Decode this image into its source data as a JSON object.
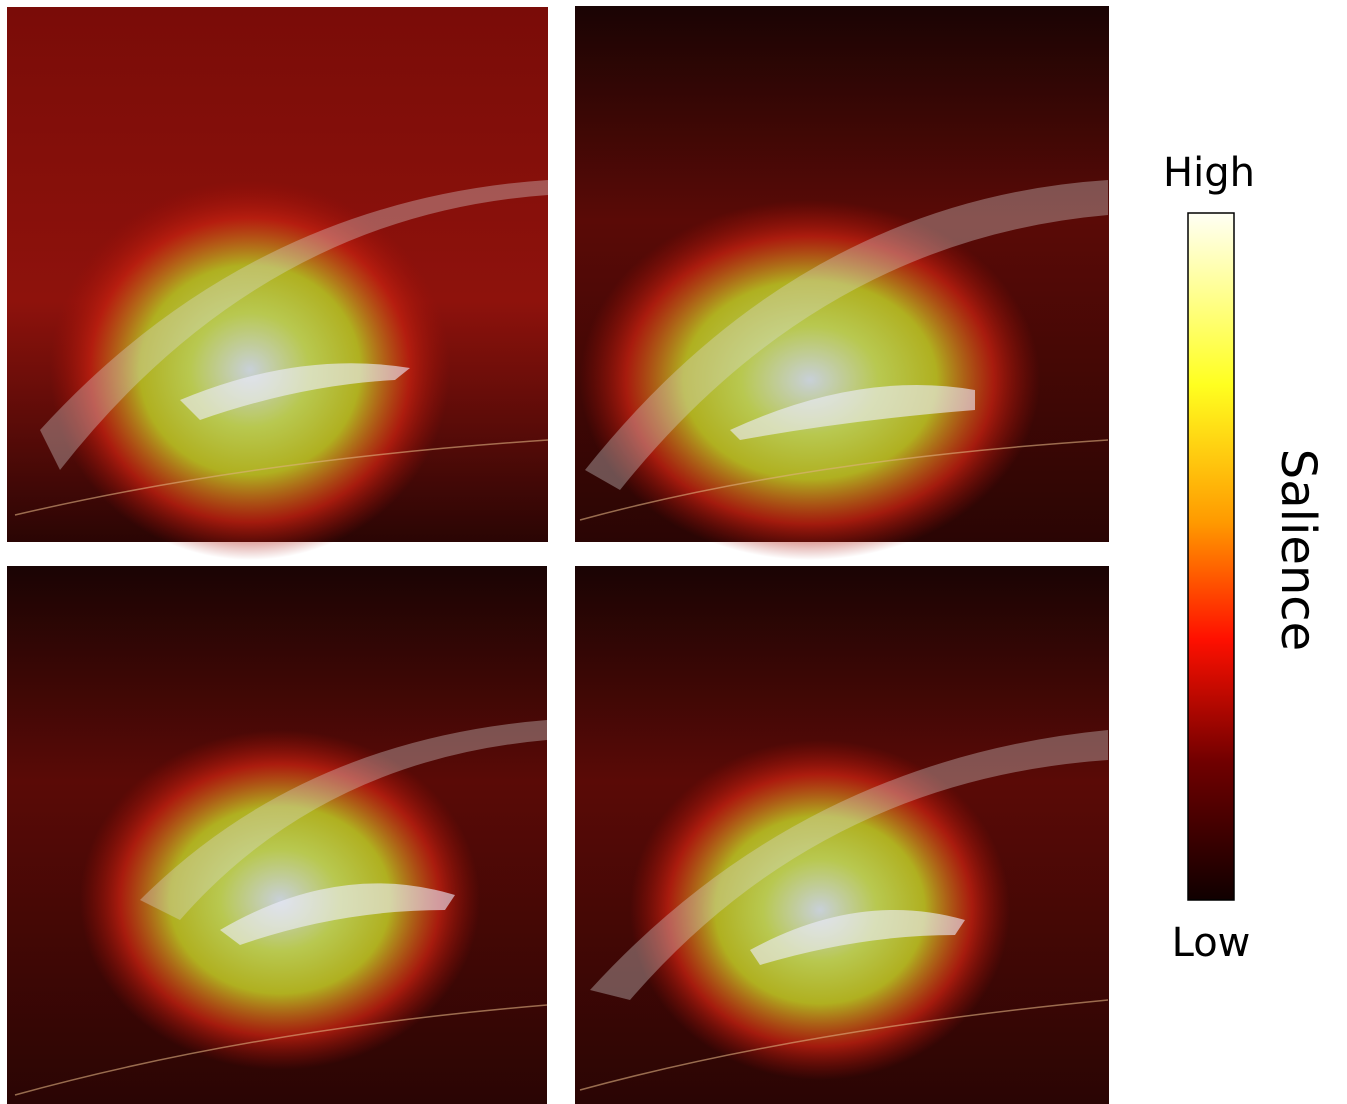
{
  "colorbar": {
    "high_label": "High",
    "low_label": "Low",
    "title": "Salience"
  }
}
